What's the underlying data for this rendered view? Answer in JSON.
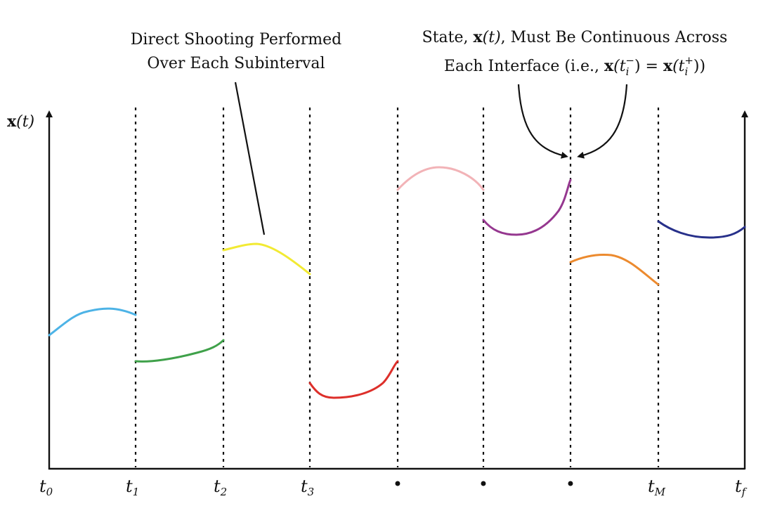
{
  "annotations": {
    "direct_shooting": {
      "line1": "Direct Shooting Performed",
      "line2": "Over Each Subinterval"
    },
    "continuity": {
      "line1_pre": "State, ",
      "line1_x": "x",
      "line1_t": "(t)",
      "line1_post": ", Must Be Continuous Across",
      "line2_pre": "Each Interface (i.e., ",
      "line2_x1": "x",
      "line2_open1": "(t",
      "line2_sub1": "i",
      "line2_sup1": "−",
      "line2_close1": ")",
      "line2_eq": " = ",
      "line2_x2": "x",
      "line2_open2": "(t",
      "line2_sub2": "i",
      "line2_sup2": "+",
      "line2_close2": "))"
    }
  },
  "y_axis_label": {
    "x": "x",
    "t": "(t)"
  },
  "tick_labels": [
    {
      "main": "t",
      "sub": "0"
    },
    {
      "main": "t",
      "sub": "1"
    },
    {
      "main": "t",
      "sub": "2"
    },
    {
      "main": "t",
      "sub": "3"
    },
    {
      "main": "•",
      "sub": ""
    },
    {
      "main": "•",
      "sub": ""
    },
    {
      "main": "•",
      "sub": ""
    },
    {
      "main": "t",
      "sub": "M"
    },
    {
      "main": "t",
      "sub": "f"
    }
  ],
  "segment_colors": {
    "interval_1": "#4db3e6",
    "interval_2": "#3fa14a",
    "interval_3": "#f2ea33",
    "interval_4": "#dd2f2a",
    "interval_5": "#f2b3b7",
    "interval_6": "#95378f",
    "interval_7": "#ec8a2e",
    "interval_8": "#27308a"
  }
}
